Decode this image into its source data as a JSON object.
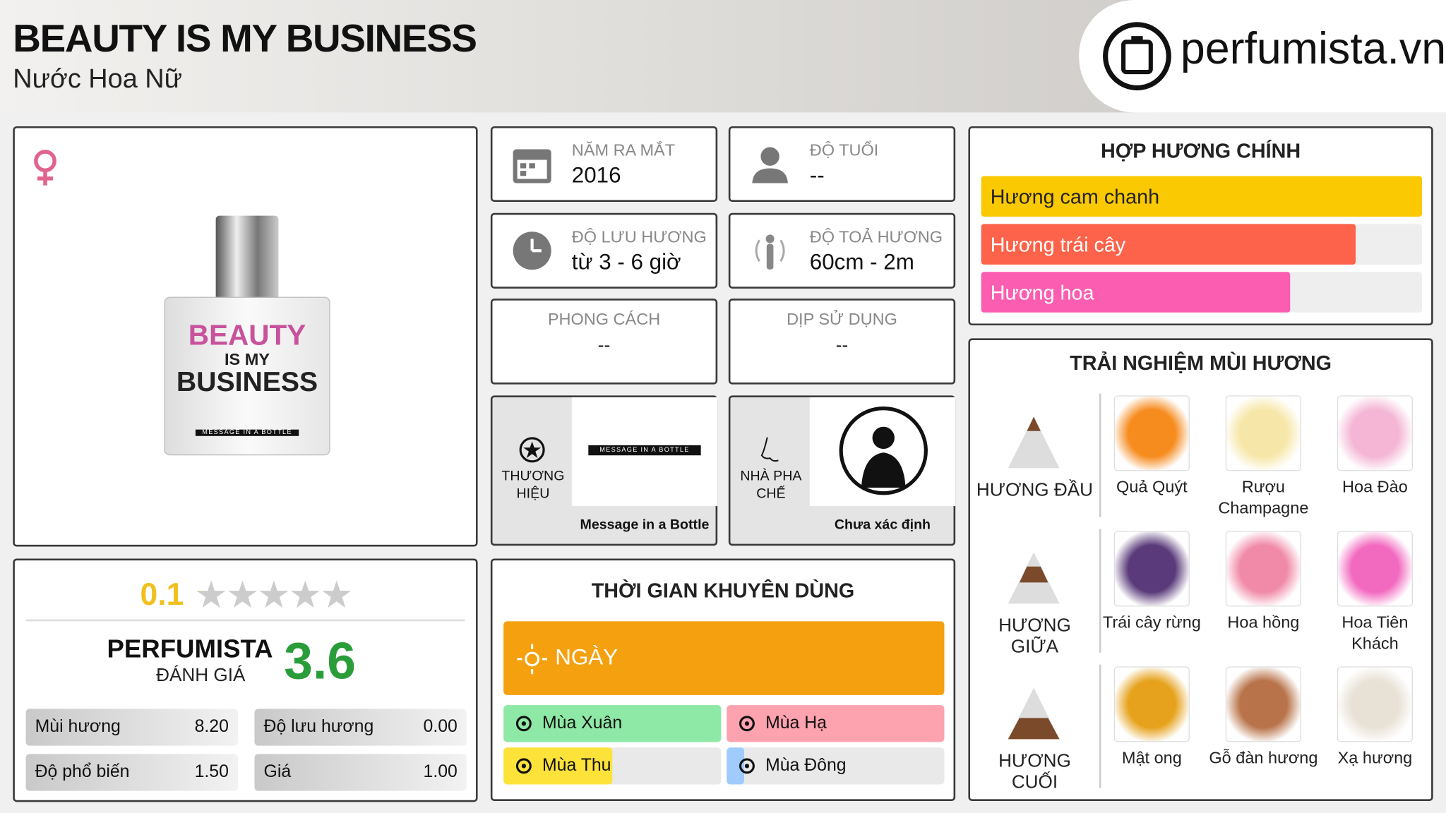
{
  "header": {
    "title": "BEAUTY IS MY BUSINESS",
    "subtitle": "Nước Hoa Nữ",
    "logo": "perfumista.vn"
  },
  "info": [
    {
      "label": "NĂM RA MẮT",
      "value": "2016"
    },
    {
      "label": "ĐỘ TUỔI",
      "value": "--"
    },
    {
      "label": "ĐỘ LƯU HƯƠNG",
      "value": "từ 3 - 6 giờ"
    },
    {
      "label": "ĐỘ TOẢ HƯƠNG",
      "value": "60cm - 2m"
    },
    {
      "label": "PHONG CÁCH",
      "value": "--"
    },
    {
      "label": "DỊP SỬ DỤNG",
      "value": "--"
    }
  ],
  "brand": {
    "label": "THƯƠNG HIỆU",
    "logo_text": "MESSAGE IN A BOTTLE",
    "name": "Message in a Bottle"
  },
  "perfumer": {
    "label": "NHÀ PHA CHẾ",
    "name": "Chưa xác định"
  },
  "bottle": {
    "line1": "BEAUTY",
    "line2": "IS MY",
    "line3": "BUSINESS",
    "tag": "MESSAGE IN A BOTTLE"
  },
  "rating": {
    "user_score": 0.1,
    "star_max": 5,
    "brand": "PERFUMISTA",
    "label": "ĐÁNH GIÁ",
    "perfumista_score": 3.6,
    "stats": [
      {
        "label": "Mùi hương",
        "value": "8.20"
      },
      {
        "label": "Độ lưu hương",
        "value": "0.00"
      },
      {
        "label": "Độ phổ biến",
        "value": "1.50"
      },
      {
        "label": "Giá",
        "value": "1.00"
      }
    ]
  },
  "accords": {
    "title": "HỢP HƯƠNG CHÍNH",
    "items": [
      {
        "name": "Hương cam chanh",
        "value": 100,
        "color": "#fbc902"
      },
      {
        "name": "Hương trái cây",
        "value": 85,
        "color": "#fd634a"
      },
      {
        "name": "Hương hoa",
        "value": 70,
        "color": "#fb5eb0"
      }
    ]
  },
  "usage": {
    "title": "THỜI GIAN KHUYÊN DÙNG",
    "day": {
      "label": "NGÀY",
      "value": 100,
      "color": "#f5a00f"
    },
    "seasons": [
      {
        "name": "Mùa Xuân",
        "value": 100,
        "color": "#8ee9a6"
      },
      {
        "name": "Mùa Hạ",
        "value": 100,
        "color": "#fda3b0"
      },
      {
        "name": "Mùa Thu",
        "value": 50,
        "color": "#fde23a"
      },
      {
        "name": "Mùa Đông",
        "value": 8,
        "color": "#9fcbfd"
      }
    ]
  },
  "notes": {
    "title": "TRẢI NGHIỆM MÙI HƯƠNG",
    "tiers": [
      {
        "name": "HƯƠNG ĐẦU",
        "notes": [
          "Quả Quýt",
          "Rượu Champagne",
          "Hoa Đào"
        ]
      },
      {
        "name": "HƯƠNG GIỮA",
        "notes": [
          "Trái cây rừng",
          "Hoa hồng",
          "Hoa Tiên Khách"
        ]
      },
      {
        "name": "HƯƠNG CUỐI",
        "notes": [
          "Mật ong",
          "Gỗ đàn hương",
          "Xạ hương"
        ]
      }
    ]
  }
}
